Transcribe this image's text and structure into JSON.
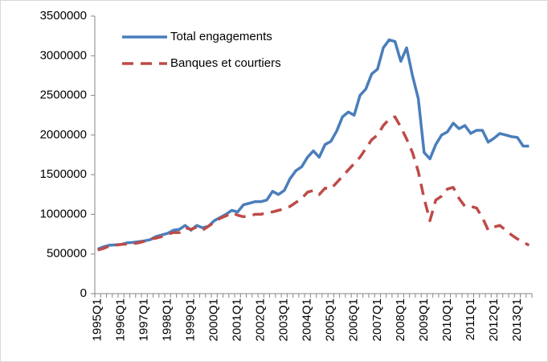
{
  "chart_data": {
    "type": "line",
    "categories": [
      "1995Q1",
      null,
      null,
      null,
      "1996Q1",
      null,
      null,
      null,
      "1997Q1",
      null,
      null,
      null,
      "1998Q1",
      null,
      null,
      null,
      "1999Q1",
      null,
      null,
      null,
      "2000Q1",
      null,
      null,
      null,
      "2001Q1",
      null,
      null,
      null,
      "2002Q1",
      null,
      null,
      null,
      "2003Q1",
      null,
      null,
      null,
      "2004Q1",
      null,
      null,
      null,
      "2005Q1",
      null,
      null,
      null,
      "2006Q1",
      null,
      null,
      null,
      "2007Q1",
      null,
      null,
      null,
      "2008Q1",
      null,
      null,
      null,
      "2009Q1",
      null,
      null,
      null,
      "2010Q1",
      null,
      null,
      null,
      "2011Q1",
      null,
      null,
      null,
      "2012Q1",
      null,
      null,
      null,
      "2013Q1",
      null,
      null
    ],
    "series": [
      {
        "name": "Total engagements",
        "color": "#4a7ebb",
        "dashed": false,
        "values": [
          560000,
          590000,
          610000,
          615000,
          620000,
          640000,
          645000,
          655000,
          665000,
          680000,
          720000,
          740000,
          760000,
          800000,
          810000,
          860000,
          800000,
          860000,
          830000,
          850000,
          920000,
          960000,
          1000000,
          1050000,
          1030000,
          1120000,
          1140000,
          1160000,
          1160000,
          1180000,
          1290000,
          1250000,
          1300000,
          1450000,
          1550000,
          1600000,
          1720000,
          1800000,
          1720000,
          1880000,
          1920000,
          2050000,
          2230000,
          2290000,
          2250000,
          2500000,
          2580000,
          2770000,
          2830000,
          3100000,
          3200000,
          3180000,
          2930000,
          3100000,
          2750000,
          2460000,
          1780000,
          1700000,
          1880000,
          2000000,
          2040000,
          2150000,
          2080000,
          2120000,
          2020000,
          2060000,
          2060000,
          1910000,
          1960000,
          2020000,
          2000000,
          1980000,
          1970000,
          1860000,
          1860000
        ]
      },
      {
        "name": "Banques et courtiers",
        "color": "#be4b48",
        "dashed": true,
        "values": [
          550000,
          570000,
          600000,
          610000,
          620000,
          625000,
          630000,
          640000,
          660000,
          690000,
          700000,
          720000,
          750000,
          770000,
          770000,
          830000,
          810000,
          840000,
          800000,
          850000,
          900000,
          950000,
          980000,
          1020000,
          990000,
          970000,
          980000,
          1000000,
          1000000,
          1020000,
          1030000,
          1050000,
          1070000,
          1100000,
          1150000,
          1200000,
          1280000,
          1300000,
          1250000,
          1330000,
          1320000,
          1400000,
          1480000,
          1560000,
          1640000,
          1720000,
          1830000,
          1940000,
          2000000,
          2120000,
          2200000,
          2230000,
          2100000,
          1950000,
          1780000,
          1540000,
          1200000,
          920000,
          1180000,
          1230000,
          1320000,
          1340000,
          1200000,
          1100000,
          1100000,
          1080000,
          960000,
          800000,
          840000,
          860000,
          800000,
          740000,
          690000,
          650000,
          610000
        ]
      }
    ],
    "ylim": [
      0,
      3500000
    ],
    "yticks": [
      0,
      500000,
      1000000,
      1500000,
      2000000,
      2500000,
      3000000,
      3500000
    ],
    "grid": false,
    "legend": "top-left"
  }
}
